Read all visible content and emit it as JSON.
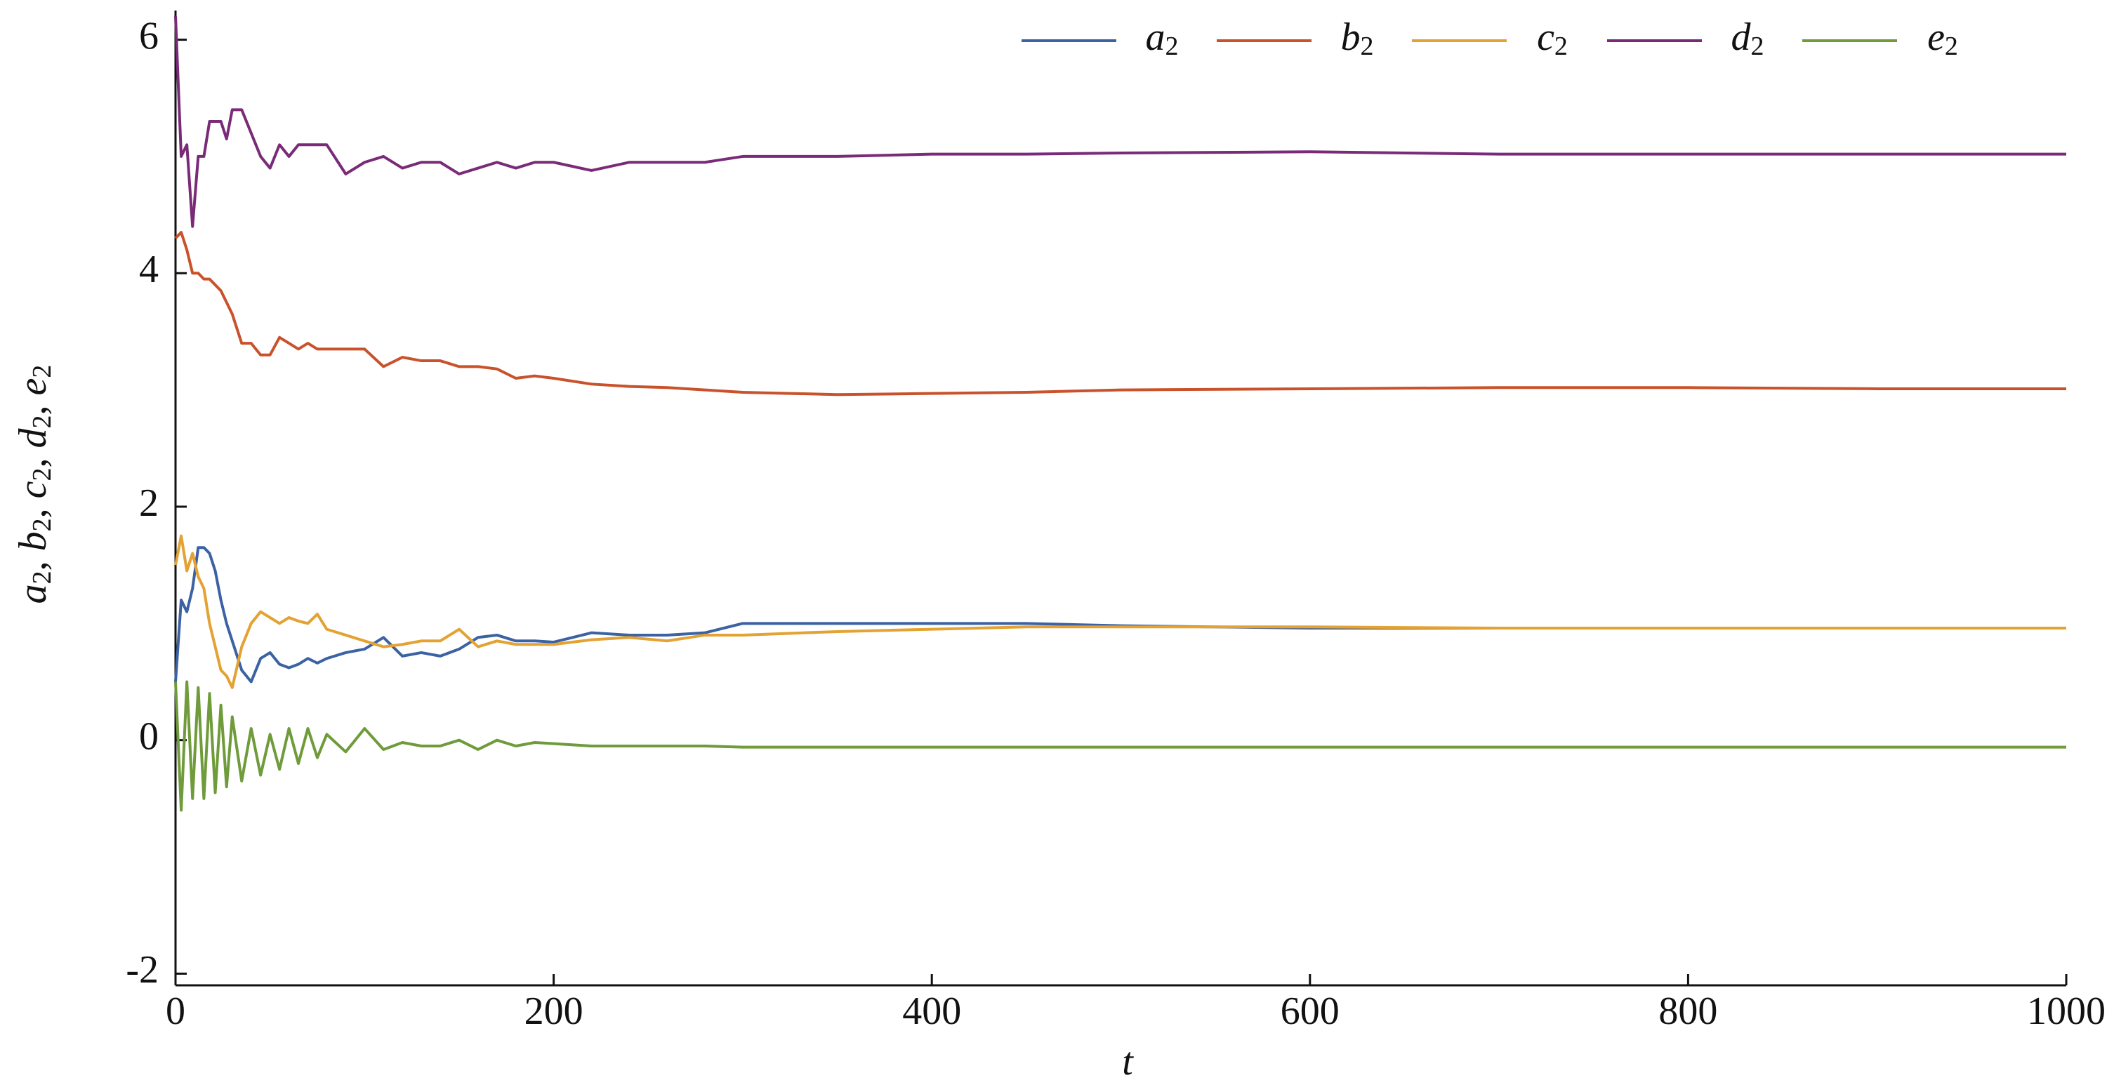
{
  "chart_data": {
    "type": "line",
    "xlabel": "t",
    "ylabel": "a2, b2, c2, d2, e2",
    "x": [
      0,
      3,
      6,
      9,
      12,
      15,
      18,
      21,
      24,
      27,
      30,
      35,
      40,
      45,
      50,
      55,
      60,
      65,
      70,
      75,
      80,
      90,
      100,
      110,
      120,
      130,
      140,
      150,
      160,
      170,
      180,
      190,
      200,
      220,
      240,
      260,
      280,
      300,
      350,
      400,
      450,
      500,
      600,
      700,
      800,
      900,
      1000
    ],
    "xlim": [
      0,
      1000
    ],
    "xticks": [
      0,
      200,
      400,
      600,
      800,
      1000
    ],
    "ylim": [
      -2.1,
      6.25
    ],
    "yticks": [
      -2,
      0,
      2,
      4,
      6
    ],
    "grid": false,
    "legend": "top",
    "series": [
      {
        "name": "a2",
        "color": "#3b62a3",
        "values": [
          0.5,
          1.2,
          1.1,
          1.3,
          1.65,
          1.65,
          1.6,
          1.45,
          1.2,
          1.0,
          0.85,
          0.6,
          0.5,
          0.7,
          0.75,
          0.65,
          0.62,
          0.65,
          0.7,
          0.66,
          0.7,
          0.75,
          0.78,
          0.88,
          0.72,
          0.75,
          0.72,
          0.78,
          0.88,
          0.9,
          0.85,
          0.85,
          0.84,
          0.92,
          0.9,
          0.9,
          0.92,
          1.0,
          1.0,
          1.0,
          1.0,
          0.98,
          0.96,
          0.96,
          0.96,
          0.96,
          0.96
        ]
      },
      {
        "name": "b2",
        "color": "#c9522b",
        "values": [
          4.3,
          4.35,
          4.2,
          4.0,
          4.0,
          3.95,
          3.95,
          3.9,
          3.85,
          3.75,
          3.65,
          3.4,
          3.4,
          3.3,
          3.3,
          3.45,
          3.4,
          3.35,
          3.4,
          3.35,
          3.35,
          3.35,
          3.35,
          3.2,
          3.28,
          3.25,
          3.25,
          3.2,
          3.2,
          3.18,
          3.1,
          3.12,
          3.1,
          3.05,
          3.03,
          3.02,
          3.0,
          2.98,
          2.96,
          2.97,
          2.98,
          3.0,
          3.01,
          3.02,
          3.02,
          3.01,
          3.01
        ]
      },
      {
        "name": "c2",
        "color": "#e3a232",
        "values": [
          1.5,
          1.75,
          1.45,
          1.6,
          1.4,
          1.3,
          1.0,
          0.8,
          0.6,
          0.55,
          0.45,
          0.8,
          1.0,
          1.1,
          1.05,
          1.0,
          1.05,
          1.02,
          1.0,
          1.08,
          0.95,
          0.9,
          0.85,
          0.8,
          0.82,
          0.85,
          0.85,
          0.95,
          0.8,
          0.85,
          0.82,
          0.82,
          0.82,
          0.86,
          0.88,
          0.85,
          0.9,
          0.9,
          0.93,
          0.95,
          0.97,
          0.97,
          0.97,
          0.96,
          0.96,
          0.96,
          0.96
        ]
      },
      {
        "name": "d2",
        "color": "#7a2b78",
        "values": [
          6.2,
          5.0,
          5.1,
          4.4,
          5.0,
          5.0,
          5.3,
          5.3,
          5.3,
          5.15,
          5.4,
          5.4,
          5.2,
          5.0,
          4.9,
          5.1,
          5.0,
          5.1,
          5.1,
          5.1,
          5.1,
          4.85,
          4.95,
          5.0,
          4.9,
          4.95,
          4.95,
          4.85,
          4.9,
          4.95,
          4.9,
          4.95,
          4.95,
          4.88,
          4.95,
          4.95,
          4.95,
          5.0,
          5.0,
          5.02,
          5.02,
          5.03,
          5.04,
          5.02,
          5.02,
          5.02,
          5.02
        ]
      },
      {
        "name": "e2",
        "color": "#6f9b3b",
        "values": [
          0.5,
          -0.6,
          0.5,
          -0.5,
          0.45,
          -0.5,
          0.4,
          -0.45,
          0.3,
          -0.4,
          0.2,
          -0.35,
          0.1,
          -0.3,
          0.05,
          -0.25,
          0.1,
          -0.2,
          0.1,
          -0.15,
          0.05,
          -0.1,
          0.1,
          -0.08,
          -0.02,
          -0.05,
          -0.05,
          0.0,
          -0.08,
          0.0,
          -0.05,
          -0.02,
          -0.03,
          -0.05,
          -0.05,
          -0.05,
          -0.05,
          -0.06,
          -0.06,
          -0.06,
          -0.06,
          -0.06,
          -0.06,
          -0.06,
          -0.06,
          -0.06,
          -0.06
        ]
      }
    ]
  }
}
